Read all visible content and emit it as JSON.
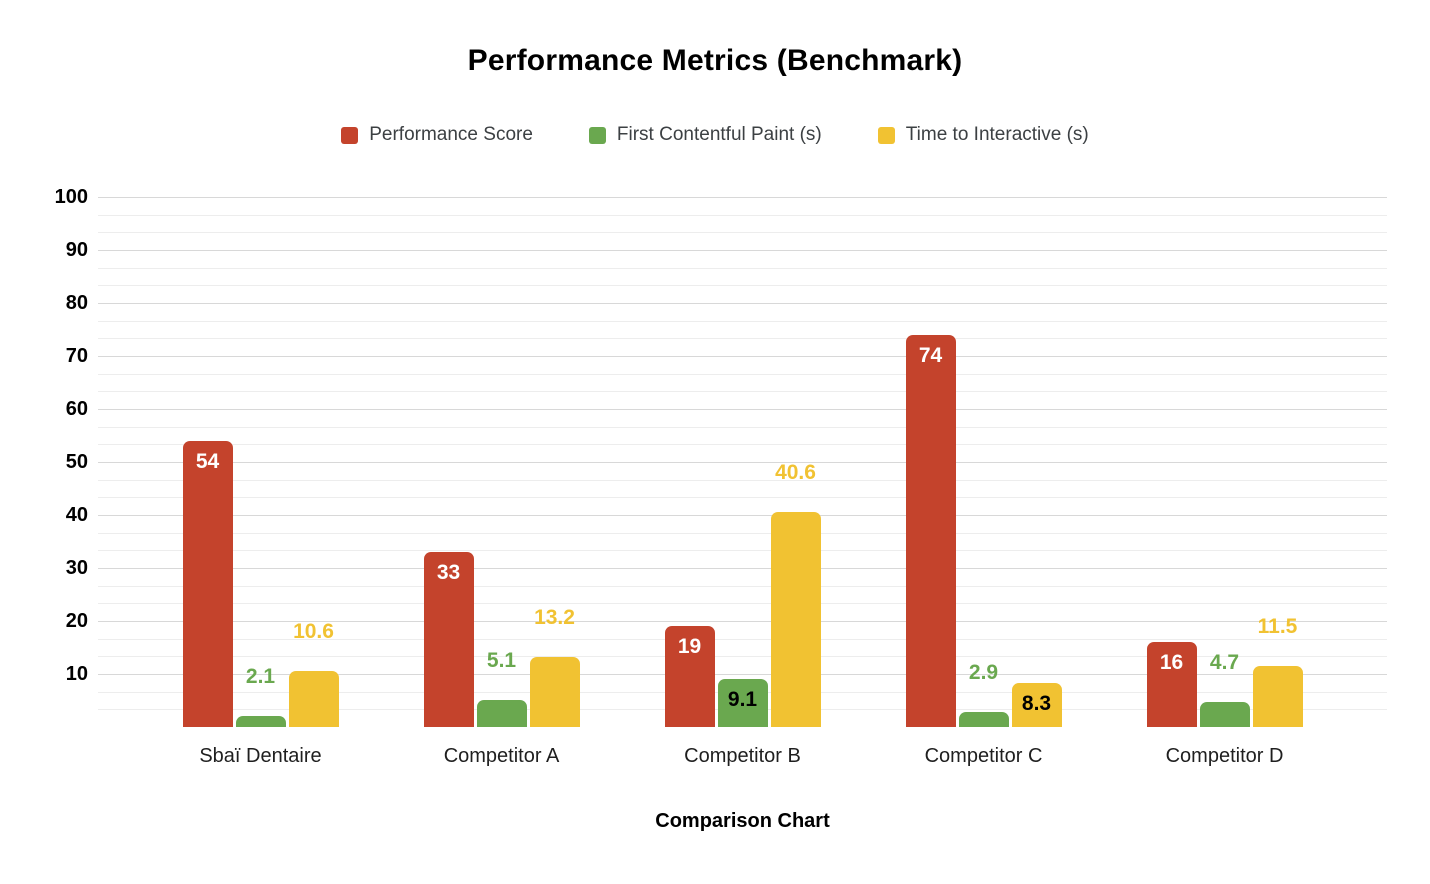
{
  "chart_data": {
    "type": "bar",
    "title": "Performance Metrics (Benchmark)",
    "xlabel": "Comparison Chart",
    "ylabel": "",
    "ylim": [
      0,
      100
    ],
    "y_major_step": 10,
    "y_minor_divisions_per_major": 3,
    "y_tick_labels": [
      "100",
      "90",
      "80",
      "70",
      "60",
      "50",
      "40",
      "30",
      "20",
      "10"
    ],
    "grid": true,
    "legend_position": "top",
    "categories": [
      "Sbaï Dentaire",
      "Competitor A",
      "Competitor B",
      "Competitor C",
      "Competitor D"
    ],
    "series": [
      {
        "name": "Performance Score",
        "color": "#c4432c",
        "inside_label_color": "#ffffff",
        "values": [
          54,
          33,
          19,
          74,
          16
        ],
        "label_placements": [
          "inside",
          "inside",
          "inside",
          "inside",
          "inside"
        ]
      },
      {
        "name": "First Contentful Paint (s)",
        "color": "#6aa84f",
        "inside_label_color": "#000000",
        "values": [
          2.1,
          5.1,
          9.1,
          2.9,
          4.7
        ],
        "label_placements": [
          "above",
          "above",
          "inside",
          "above",
          "above"
        ]
      },
      {
        "name": "Time to Interactive (s)",
        "color": "#f1c232",
        "inside_label_color": "#000000",
        "values": [
          10.6,
          13.2,
          40.6,
          8.3,
          11.5
        ],
        "label_placements": [
          "above",
          "above",
          "above",
          "inside",
          "above"
        ]
      }
    ],
    "colors": {
      "major_gridline": "#d8d8d8",
      "minor_gridline": "#ededed",
      "axis_text": "#000000",
      "category_text": "#1f1f1f",
      "legend_text": "#3c4043",
      "title_text": "#000000",
      "background": "#ffffff"
    }
  }
}
